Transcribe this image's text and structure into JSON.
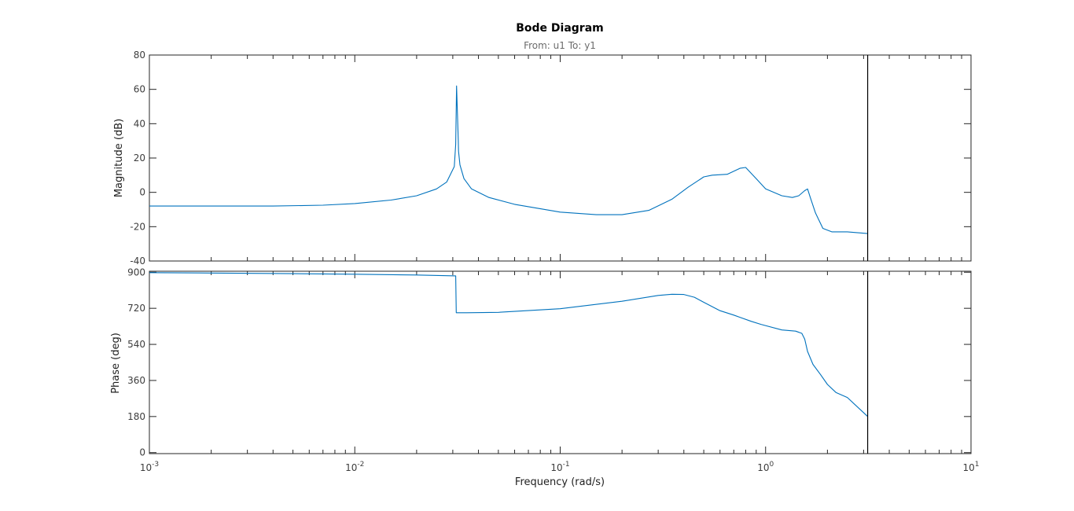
{
  "chart_data": {
    "type": "line",
    "title": "Bode Diagram",
    "subtitle": "From: u1  To: y1",
    "xlabel": "Frequency  (rad/s)",
    "xscale": "log",
    "xlim": [
      0.001,
      10
    ],
    "x_tick_labels": [
      {
        "value": 0.001,
        "base": "10",
        "exp": "-3"
      },
      {
        "value": 0.01,
        "base": "10",
        "exp": "-2"
      },
      {
        "value": 0.1,
        "base": "10",
        "exp": "-1"
      },
      {
        "value": 1,
        "base": "10",
        "exp": "0"
      },
      {
        "value": 10,
        "base": "10",
        "exp": "1"
      }
    ],
    "grid": false,
    "line_color": "#0072bd",
    "nyquist_marker": {
      "x": 3.14,
      "color": "#000000"
    },
    "panels": [
      {
        "name": "magnitude",
        "ylabel": "Magnitude (dB)",
        "ylim": [
          -40,
          80
        ],
        "yticks": [
          -40,
          -20,
          0,
          20,
          40,
          60,
          80
        ],
        "x": [
          0.001,
          0.002,
          0.004,
          0.007,
          0.01,
          0.015,
          0.02,
          0.025,
          0.028,
          0.0305,
          0.031,
          0.0313,
          0.0316,
          0.0319,
          0.032,
          0.0325,
          0.034,
          0.037,
          0.045,
          0.06,
          0.1,
          0.15,
          0.2,
          0.27,
          0.35,
          0.42,
          0.5,
          0.55,
          0.65,
          0.75,
          0.8,
          0.9,
          1.0,
          1.2,
          1.35,
          1.45,
          1.55,
          1.6,
          1.65,
          1.75,
          1.9,
          2.1,
          2.5,
          3.14
        ],
        "y": [
          -8,
          -8,
          -8,
          -7.5,
          -6.5,
          -4.5,
          -2,
          2,
          6,
          15,
          28,
          62,
          46,
          30,
          24,
          16,
          8,
          2,
          -3,
          -7,
          -11.5,
          -13,
          -13,
          -10.5,
          -4,
          3,
          9,
          10,
          10.5,
          14,
          14.5,
          8,
          2,
          -2,
          -3,
          -2,
          1,
          2,
          -3,
          -12,
          -21,
          -23,
          -23,
          -24
        ]
      },
      {
        "name": "phase",
        "ylabel": "Phase (deg)",
        "ylim": [
          -5,
          905
        ],
        "yticks": [
          0,
          180,
          360,
          540,
          720,
          900
        ],
        "x": [
          0.001,
          0.002,
          0.005,
          0.01,
          0.02,
          0.031,
          0.0312,
          0.035,
          0.05,
          0.1,
          0.2,
          0.3,
          0.35,
          0.4,
          0.45,
          0.5,
          0.6,
          0.7,
          0.75,
          0.85,
          0.95,
          1.2,
          1.4,
          1.5,
          1.55,
          1.6,
          1.7,
          1.85,
          2.0,
          2.2,
          2.5,
          3.14
        ],
        "y": [
          898,
          896,
          893,
          890,
          886,
          882,
          698,
          698,
          700,
          718,
          755,
          784,
          790,
          789,
          775,
          750,
          708,
          686,
          675,
          655,
          640,
          612,
          606,
          595,
          566,
          505,
          440,
          390,
          340,
          300,
          275,
          180
        ]
      }
    ]
  }
}
